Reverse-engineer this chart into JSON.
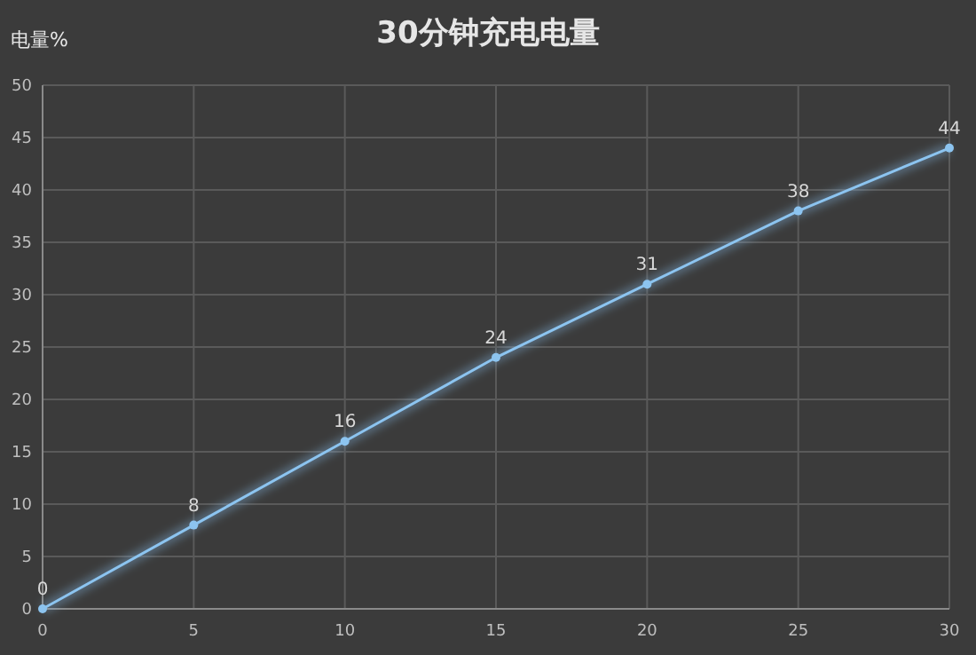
{
  "chart_data": {
    "type": "line",
    "title": "30分钟充电电量",
    "ylabel": "电量%",
    "x": [
      0,
      5,
      10,
      15,
      20,
      25,
      30
    ],
    "series": [
      {
        "color": "#8cc4f0",
        "values": [
          0,
          8,
          16,
          24,
          31,
          38,
          44
        ]
      }
    ],
    "xlim": [
      0,
      30
    ],
    "xticks": [
      0,
      5,
      10,
      15,
      20,
      25,
      30
    ],
    "ylim": [
      0,
      50
    ],
    "yticks": [
      0,
      5,
      10,
      15,
      20,
      25,
      30,
      35,
      40,
      45,
      50
    ],
    "grid": true,
    "data_labels": true,
    "marker": "circle",
    "line_style": "solid"
  }
}
